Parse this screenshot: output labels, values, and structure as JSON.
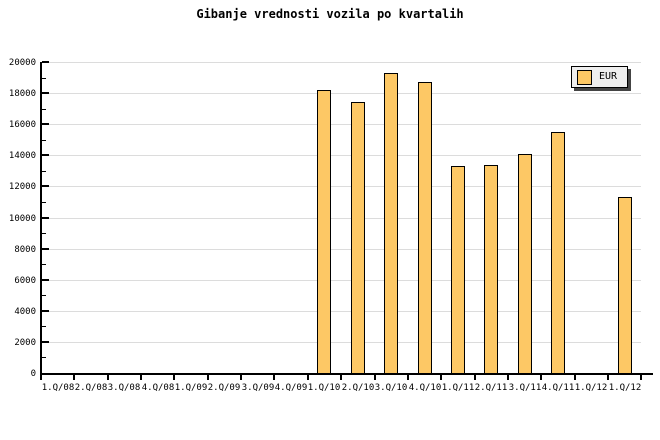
{
  "colors": {
    "background": "#FFFFFF",
    "bar_fill": "#FDC865",
    "bar_border": "#000000",
    "grid": "#DCDCDC",
    "axis": "#000000",
    "legend_bg": "#EEEEEE",
    "legend_border": "#000000",
    "legend_shadow": "#444444",
    "text": "#000000"
  },
  "legend": {
    "label": "EUR"
  },
  "chart_data": {
    "type": "bar",
    "title": "Gibanje vrednosti vozila po kvartalih",
    "categories": [
      "1.Q/08",
      "2.Q/08",
      "3.Q/08",
      "4.Q/08",
      "1.Q/09",
      "2.Q/09",
      "3.Q/09",
      "4.Q/09",
      "1.Q/10",
      "2.Q/10",
      "3.Q/10",
      "4.Q/10",
      "1.Q/11",
      "2.Q/11",
      "3.Q/11",
      "4.Q/11",
      "1.Q/12",
      "1.Q/12"
    ],
    "series": [
      {
        "name": "EUR",
        "values": [
          null,
          null,
          null,
          null,
          null,
          null,
          null,
          null,
          18200,
          17400,
          19300,
          18700,
          13300,
          13400,
          14100,
          15500,
          null,
          11300
        ]
      }
    ],
    "xlabel": "",
    "ylabel": "",
    "ylim": [
      0,
      20000
    ],
    "ytick_major": 2000,
    "ytick_minor": 1000,
    "ytick_labels": [
      "0",
      "2000",
      "4000",
      "6000",
      "8000",
      "10000",
      "12000",
      "14000",
      "16000",
      "18000",
      "20000"
    ],
    "grid": "horizontal-major",
    "legend_position": "top-right"
  }
}
